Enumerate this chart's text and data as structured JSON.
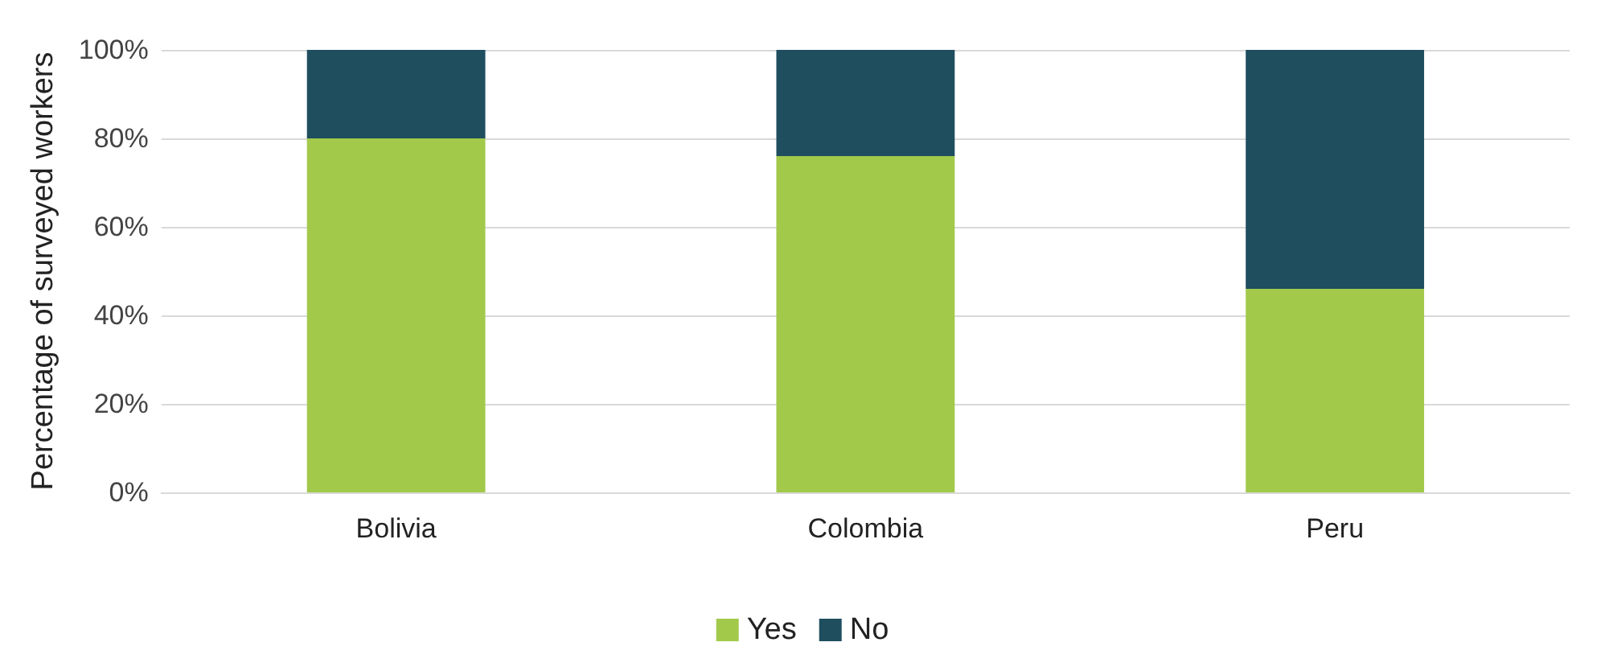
{
  "chart_data": {
    "type": "bar",
    "stacked": true,
    "ylabel": "Percentage of surveyed workers",
    "categories": [
      "Bolivia",
      "Colombia",
      "Peru"
    ],
    "series": [
      {
        "name": "Yes",
        "color": "#a2c94a",
        "values": [
          80,
          76,
          46
        ]
      },
      {
        "name": "No",
        "color": "#1f4e5f",
        "values": [
          20,
          24,
          54
        ]
      }
    ],
    "ylim": [
      0,
      100
    ],
    "yticks": [
      {
        "value": 0,
        "label": "0%"
      },
      {
        "value": 20,
        "label": "20%"
      },
      {
        "value": 40,
        "label": "40%"
      },
      {
        "value": 60,
        "label": "60%"
      },
      {
        "value": 80,
        "label": "80%"
      },
      {
        "value": 100,
        "label": "100%"
      }
    ],
    "grid": "y",
    "legend": "bottom"
  }
}
